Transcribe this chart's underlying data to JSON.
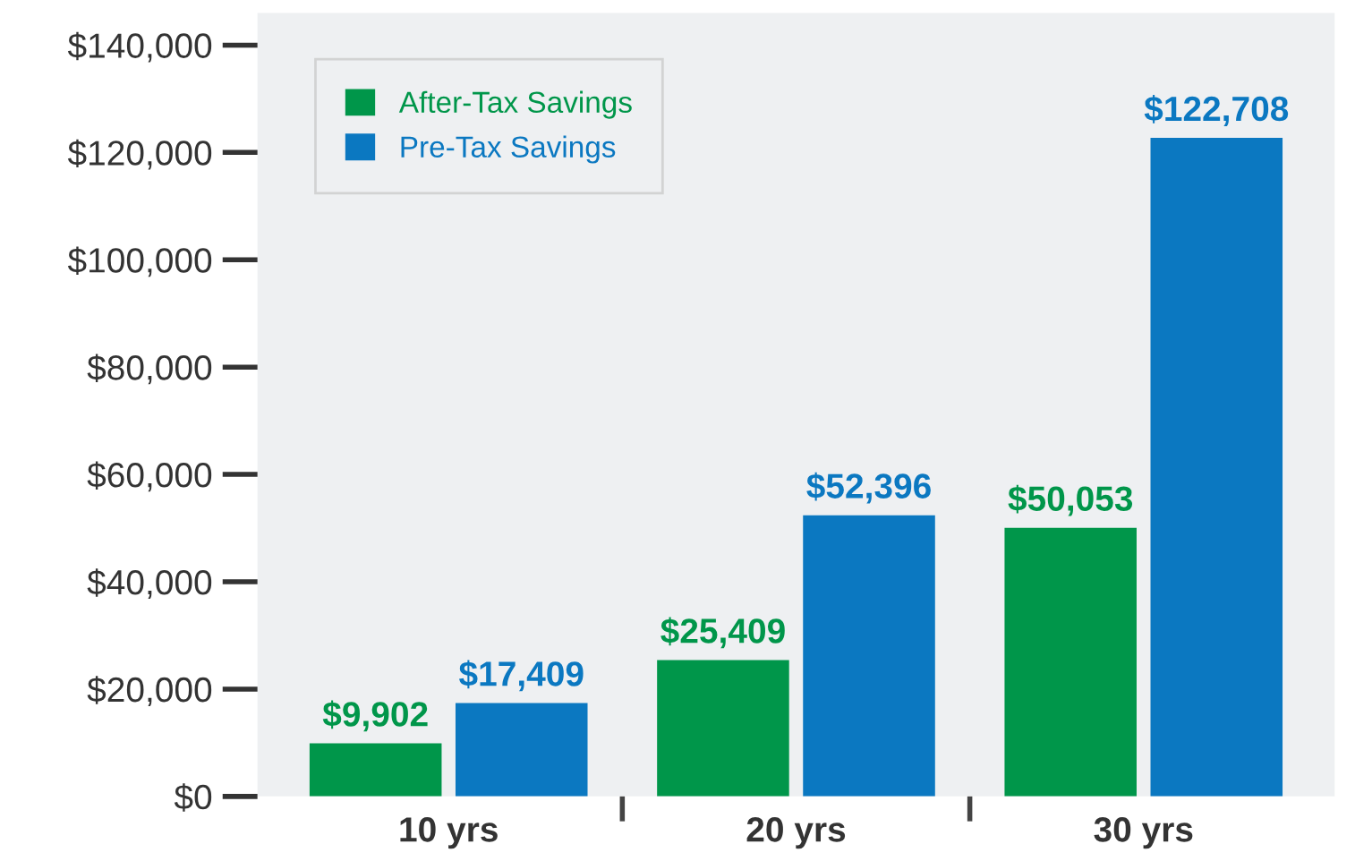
{
  "chart_data": {
    "type": "bar",
    "categories": [
      "10 yrs",
      "20 yrs",
      "30 yrs"
    ],
    "series": [
      {
        "name": "After-Tax Savings",
        "color": "#00964a",
        "values": [
          9902,
          25409,
          50053
        ],
        "value_labels": [
          "$9,902",
          "$25,409",
          "$50,053"
        ]
      },
      {
        "name": "Pre-Tax Savings",
        "color": "#0b78c1",
        "values": [
          17409,
          52396,
          122708
        ],
        "value_labels": [
          "$17,409",
          "$52,396",
          "$122,708"
        ]
      }
    ],
    "ylim": [
      0,
      146000
    ],
    "yticks": [
      {
        "value": 0,
        "label": "$0"
      },
      {
        "value": 20000,
        "label": "$20,000"
      },
      {
        "value": 40000,
        "label": "$40,000"
      },
      {
        "value": 60000,
        "label": "$60,000"
      },
      {
        "value": 80000,
        "label": "$80,000"
      },
      {
        "value": 100000,
        "label": "$100,000"
      },
      {
        "value": 120000,
        "label": "$120,000"
      },
      {
        "value": 140000,
        "label": "$140,000"
      }
    ],
    "grid": false,
    "legend": "top left"
  }
}
